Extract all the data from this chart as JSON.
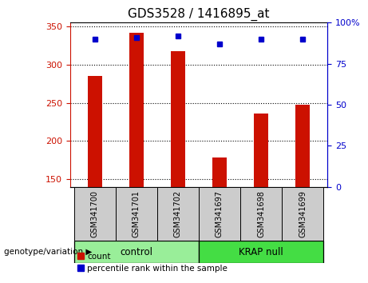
{
  "title": "GDS3528 / 1416895_at",
  "categories": [
    "GSM341700",
    "GSM341701",
    "GSM341702",
    "GSM341697",
    "GSM341698",
    "GSM341699"
  ],
  "count_values": [
    285,
    342,
    318,
    178,
    236,
    247
  ],
  "percentile_values": [
    90,
    91,
    92,
    87,
    90,
    90
  ],
  "ylim_left": [
    140,
    355
  ],
  "ylim_right": [
    0,
    100
  ],
  "yticks_left": [
    150,
    200,
    250,
    300,
    350
  ],
  "yticks_right": [
    0,
    25,
    50,
    75,
    100
  ],
  "bar_color": "#cc1100",
  "dot_color": "#0000cc",
  "groups": [
    {
      "label": "control",
      "xmin": -0.5,
      "xmax": 2.5,
      "color": "#99ee99"
    },
    {
      "label": "KRAP null",
      "xmin": 2.5,
      "xmax": 5.5,
      "color": "#44dd44"
    }
  ],
  "xlabel_area": "genotype/variation",
  "legend_count": "count",
  "legend_percentile": "percentile rank within the sample",
  "tick_label_area_color": "#cccccc",
  "bar_width": 0.35
}
